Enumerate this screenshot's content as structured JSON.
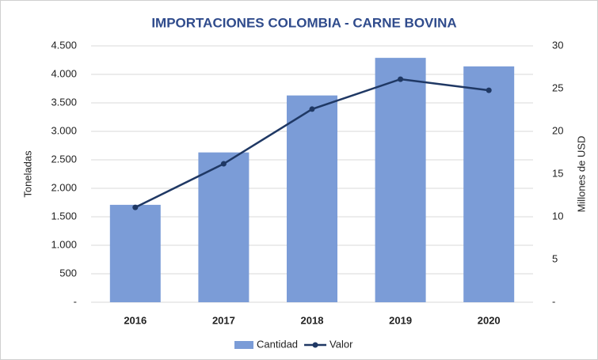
{
  "chart_data": {
    "type": "bar",
    "title": "IMPORTACIONES COLOMBIA - CARNE BOVINA",
    "ylabel": "Toneladas",
    "y2label": "Millones de USD",
    "categories": [
      "2016",
      "2017",
      "2018",
      "2019",
      "2020"
    ],
    "series": [
      {
        "name": "Cantidad",
        "color": "#7b9cd7",
        "values": [
          1710,
          2630,
          3630,
          4290,
          4140
        ]
      },
      {
        "name": "Valor",
        "type": "line",
        "axis": "y2",
        "color": "#1f3864",
        "values": [
          11.1,
          16.2,
          22.6,
          26.1,
          24.8
        ]
      }
    ],
    "ylim": [
      0,
      4500
    ],
    "yticks": [
      {
        "value": 0,
        "label": "-"
      },
      500,
      {
        "value": 1000,
        "label": "1.000"
      },
      {
        "value": 1500,
        "label": "1.500"
      },
      {
        "value": 2000,
        "label": "2.000"
      },
      {
        "value": 2500,
        "label": "2.500"
      },
      {
        "value": 3000,
        "label": "3.000"
      },
      {
        "value": 3500,
        "label": "3.500"
      },
      {
        "value": 4000,
        "label": "4.000"
      },
      {
        "value": 4500,
        "label": "4.500"
      }
    ],
    "y2lim": [
      0,
      30
    ],
    "y2ticks": [
      {
        "value": 0,
        "label": "-"
      },
      5,
      10,
      15,
      20,
      25,
      30
    ],
    "grid": true,
    "legend": "bottom"
  }
}
